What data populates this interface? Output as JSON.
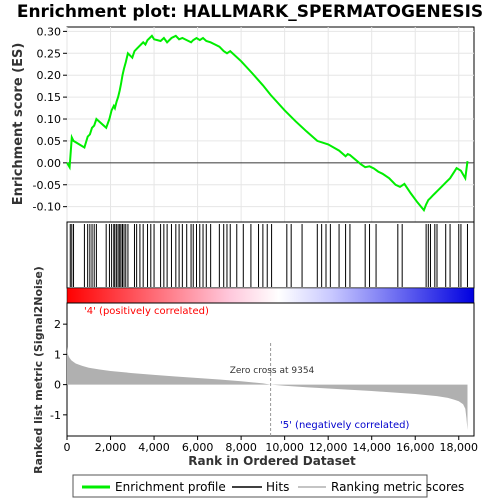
{
  "chart_data": {
    "type": "line",
    "title": "Enrichment plot: HALLMARK_SPERMATOGENESIS",
    "top_panel": {
      "ylabel": "Enrichment score (ES)",
      "ylim": [
        -0.135,
        0.31
      ],
      "yticks": [
        -0.1,
        -0.05,
        0.0,
        0.05,
        0.1,
        0.15,
        0.2,
        0.25,
        0.3
      ],
      "ytick_labels": [
        "-0.10",
        "-0.05",
        "0.00",
        "0.05",
        "0.10",
        "0.15",
        "0.20",
        "0.25",
        "0.30"
      ],
      "grid": true,
      "series": [
        {
          "name": "Enrichment profile",
          "color": "#00ee00",
          "x": [
            0,
            120,
            220,
            300,
            800,
            950,
            1050,
            1150,
            1250,
            1350,
            1800,
            1950,
            2050,
            2150,
            2200,
            2280,
            2350,
            2420,
            2480,
            2550,
            2620,
            2700,
            2800,
            3000,
            3100,
            3200,
            3300,
            3400,
            3500,
            3600,
            3700,
            3800,
            3900,
            4000,
            4150,
            4300,
            4450,
            4600,
            4800,
            5000,
            5150,
            5300,
            5500,
            5700,
            5800,
            5950,
            6100,
            6250,
            6400,
            6600,
            6800,
            7000,
            7200,
            7350,
            7500,
            8000,
            8500,
            9000,
            9354,
            10000,
            10500,
            11000,
            11500,
            12000,
            12500,
            12800,
            12900,
            13000,
            13500,
            13700,
            13900,
            14100,
            14300,
            14500,
            14800,
            15100,
            15300,
            15500,
            15800,
            16100,
            16400,
            16500,
            16600,
            16700,
            16800,
            16900,
            17000,
            17200,
            17400,
            17600,
            17800,
            17900,
            18100,
            18300,
            18400
          ],
          "y": [
            0.0,
            -0.01,
            0.058,
            0.05,
            0.035,
            0.06,
            0.065,
            0.08,
            0.085,
            0.1,
            0.08,
            0.1,
            0.12,
            0.13,
            0.125,
            0.14,
            0.15,
            0.165,
            0.18,
            0.2,
            0.215,
            0.23,
            0.25,
            0.24,
            0.255,
            0.26,
            0.265,
            0.27,
            0.275,
            0.27,
            0.28,
            0.285,
            0.29,
            0.282,
            0.28,
            0.278,
            0.285,
            0.275,
            0.285,
            0.29,
            0.282,
            0.285,
            0.28,
            0.275,
            0.28,
            0.285,
            0.28,
            0.285,
            0.278,
            0.275,
            0.27,
            0.265,
            0.255,
            0.25,
            0.255,
            0.232,
            0.205,
            0.177,
            0.155,
            0.12,
            0.095,
            0.072,
            0.05,
            0.042,
            0.028,
            0.015,
            0.02,
            0.018,
            -0.003,
            -0.01,
            -0.008,
            -0.013,
            -0.02,
            -0.025,
            -0.035,
            -0.05,
            -0.055,
            -0.048,
            -0.07,
            -0.09,
            -0.108,
            -0.095,
            -0.085,
            -0.08,
            -0.075,
            -0.07,
            -0.065,
            -0.055,
            -0.045,
            -0.035,
            -0.02,
            -0.012,
            -0.018,
            -0.035,
            0.004
          ]
        }
      ]
    },
    "hits_panel": {
      "legend_label": "Hits",
      "positions": [
        150,
        220,
        300,
        800,
        950,
        1050,
        1150,
        1250,
        1350,
        1800,
        1950,
        2050,
        2150,
        2200,
        2280,
        2350,
        2420,
        2480,
        2550,
        2620,
        2700,
        2800,
        3100,
        3200,
        3350,
        3500,
        3700,
        3850,
        4000,
        4300,
        4450,
        4600,
        4800,
        5000,
        5150,
        5300,
        5500,
        5700,
        5800,
        5950,
        6100,
        6250,
        6400,
        6600,
        7000,
        7200,
        7350,
        7500,
        7800,
        8100,
        8450,
        8800,
        9000,
        9200,
        9400,
        10100,
        10300,
        10800,
        11500,
        11700,
        11900,
        12100,
        12500,
        12800,
        13000,
        13700,
        13900,
        14200,
        15200,
        15400,
        16500,
        16600,
        16700,
        16900,
        17000,
        17400,
        17600,
        18000,
        18100,
        18400
      ]
    },
    "metric_panel": {
      "ylabel": "Ranked list metric (Signal2Noise)",
      "xlabel": "Rank in Ordered Dataset",
      "ylim": [
        -1.7,
        2.7
      ],
      "yticks": [
        -1,
        0,
        1,
        2
      ],
      "ytick_labels": [
        "-1",
        "0",
        "1",
        "2"
      ],
      "xlim": [
        0,
        18700
      ],
      "xticks": [
        0,
        2000,
        4000,
        6000,
        8000,
        10000,
        12000,
        14000,
        16000,
        18000
      ],
      "xtick_labels": [
        "0",
        "2,000",
        "4,000",
        "6,000",
        "8,000",
        "10,000",
        "12,000",
        "14,000",
        "16,000",
        "18,000"
      ],
      "curve_x": [
        0,
        40,
        100,
        200,
        400,
        700,
        1000,
        1500,
        2000,
        3000,
        4000,
        5000,
        6000,
        7000,
        8000,
        9000,
        9354,
        10000,
        11000,
        12000,
        13000,
        14000,
        15000,
        16000,
        17000,
        17500,
        17800,
        18000,
        18200,
        18300,
        18350,
        18400
      ],
      "curve_y": [
        1.25,
        1.0,
        0.9,
        0.8,
        0.7,
        0.62,
        0.56,
        0.5,
        0.45,
        0.38,
        0.32,
        0.27,
        0.22,
        0.17,
        0.11,
        0.04,
        0.0,
        -0.04,
        -0.09,
        -0.13,
        -0.17,
        -0.21,
        -0.26,
        -0.31,
        -0.38,
        -0.44,
        -0.5,
        -0.55,
        -0.65,
        -0.8,
        -1.1,
        -1.5
      ],
      "zero_cross_label": "Zero cross at 9354",
      "zero_cross_x": 9354,
      "pos_label": "'4' (positively correlated)",
      "neg_label": "'5' (negatively correlated)",
      "pos_color": "#ff0000",
      "neg_color": "#0000ff"
    },
    "legend": {
      "items": [
        {
          "label": "Enrichment profile",
          "color": "#00ee00"
        },
        {
          "label": "Hits",
          "color": "#000000"
        },
        {
          "label": "Ranking metric scores",
          "color": "#b0b0b0"
        }
      ]
    }
  }
}
